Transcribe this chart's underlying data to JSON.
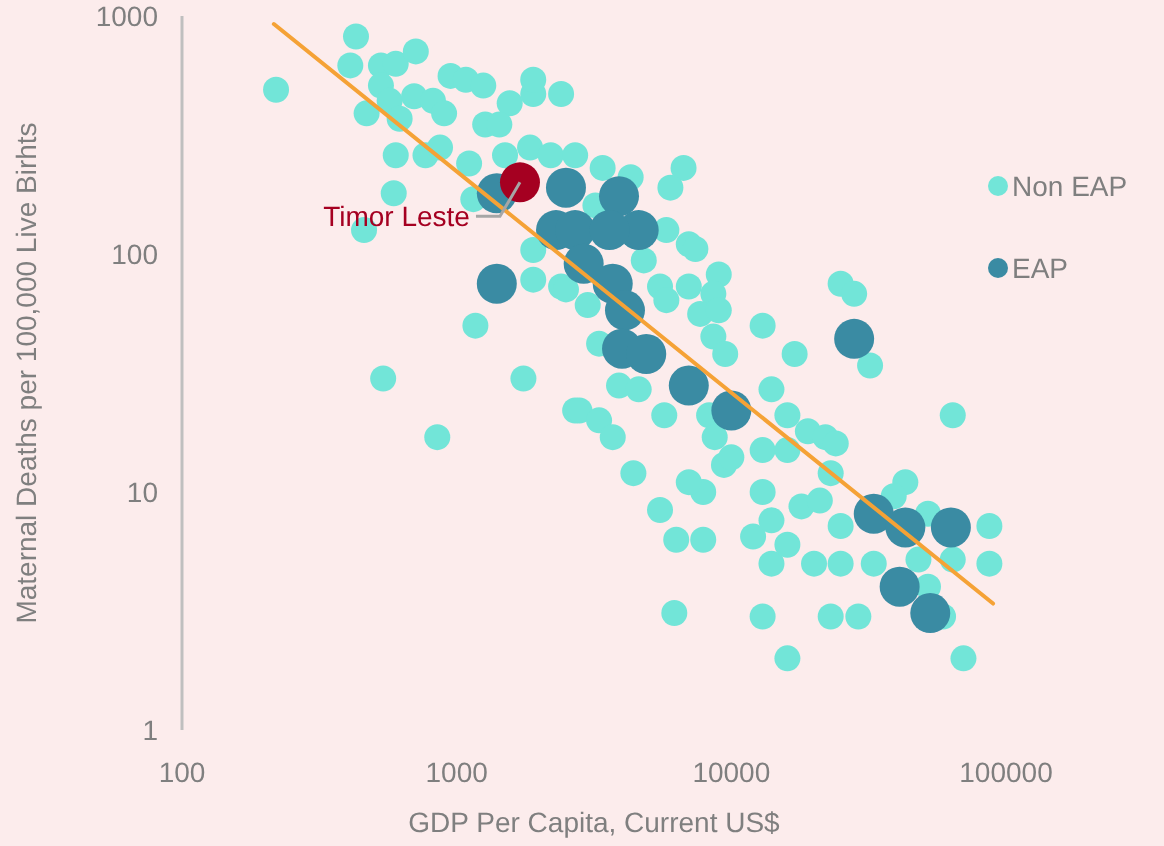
{
  "chart_data": {
    "type": "scatter",
    "xlabel": "GDP Per Capita, Current US$",
    "ylabel": "Maternal Deaths per 100,000 Live Birhts",
    "log": "xy",
    "xlim": [
      100,
      100000
    ],
    "xticks": [
      100,
      1000,
      10000,
      100000
    ],
    "ylim": [
      1,
      1000
    ],
    "yticks": [
      1,
      10,
      100,
      1000
    ],
    "grid": false,
    "legend": "right",
    "marker": "circle",
    "series": [
      {
        "name": "Non EAP",
        "color": "#72e5d8",
        "x": [
          220,
          430,
          410,
          530,
          600,
          710,
          950,
          1080,
          1250,
          1560,
          1900,
          2400,
          1900,
          530,
          570,
          700,
          820,
          900,
          470,
          620,
          1270,
          1430,
          600,
          770,
          870,
          1110,
          590,
          460,
          1500,
          1850,
          2200,
          1150,
          1900,
          2400,
          1900,
          1170,
          540,
          1750,
          850,
          2700,
          2700,
          3400,
          4300,
          6700,
          6000,
          3200,
          5800,
          7000,
          7400,
          4800,
          2500,
          3000,
          5500,
          7000,
          9000,
          8600,
          5800,
          7700,
          9000,
          3300,
          8600,
          9500,
          13000,
          17000,
          25000,
          28000,
          32000,
          3900,
          4600,
          2800,
          3300,
          3700,
          5700,
          8300,
          8700,
          14000,
          16000,
          19000,
          22000,
          24000,
          9400,
          10000,
          13000,
          16000,
          23000,
          4400,
          7900,
          13000,
          5500,
          18000,
          43000,
          39000,
          64000,
          21000,
          25000,
          52000,
          87000,
          14000,
          20000,
          25000,
          33000,
          48000,
          64000,
          87000,
          52000,
          13000,
          23000,
          29000,
          59000,
          16000,
          70000,
          6200,
          7900,
          6300,
          16000,
          12000,
          14000,
          7000
        ],
        "values": [
          490,
          820,
          620,
          620,
          630,
          710,
          560,
          540,
          510,
          430,
          470,
          470,
          540,
          510,
          440,
          460,
          440,
          390,
          390,
          370,
          350,
          350,
          260,
          260,
          280,
          240,
          180,
          126,
          260,
          280,
          260,
          170,
          104,
          73,
          78,
          50,
          30,
          30,
          17,
          22,
          260,
          230,
          210,
          230,
          190,
          160,
          126,
          110,
          105,
          94,
          71,
          61,
          73,
          73,
          82,
          68,
          64,
          56,
          58,
          42,
          45,
          38,
          50,
          38,
          75,
          68,
          34,
          28,
          27,
          22,
          20,
          17,
          21,
          21,
          17,
          27,
          21,
          18,
          17,
          16,
          13,
          14,
          15,
          15,
          12,
          12,
          10,
          10,
          8.4,
          8.7,
          11,
          9.6,
          21,
          9.2,
          7.2,
          8.1,
          7.2,
          5,
          5,
          5,
          5,
          5.2,
          5.2,
          5,
          4,
          3,
          3,
          3,
          3,
          2,
          2,
          3.1,
          6.3,
          6.3,
          6,
          6.5,
          7.6,
          11
        ]
      },
      {
        "name": "EAP",
        "color": "#3a8ba3",
        "x": [
          1400,
          2500,
          2300,
          1400,
          3900,
          4600,
          2700,
          3600,
          2900,
          3700,
          4100,
          4000,
          4900,
          7000,
          10000,
          28000,
          33000,
          43000,
          63000,
          41000,
          53000
        ],
        "values": [
          180,
          190,
          126,
          75,
          175,
          126,
          126,
          126,
          91,
          75,
          58,
          40,
          38,
          28,
          22,
          44,
          8.1,
          7.1,
          7.1,
          4,
          3.1
        ]
      },
      {
        "name": "Timor Leste",
        "color": "#a50021",
        "x": [
          1700
        ],
        "values": [
          200
        ]
      },
      {
        "type": "line",
        "marker": "none",
        "color": "#f5a236",
        "x": [
          216,
          89700
        ],
        "values": [
          925,
          3.4
        ]
      }
    ]
  }
}
